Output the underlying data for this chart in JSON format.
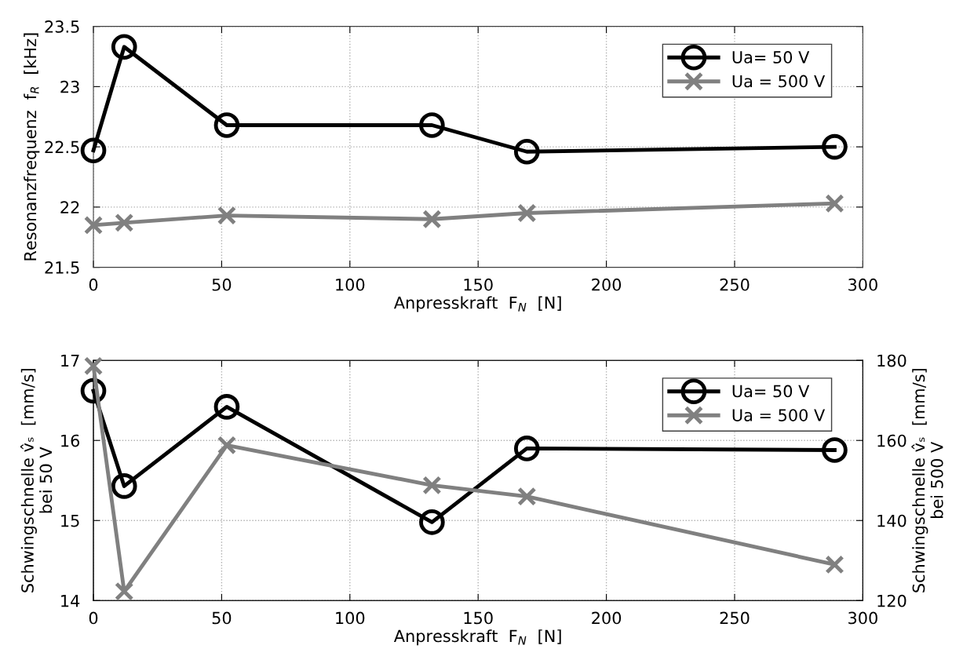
{
  "chart_data": [
    {
      "type": "line",
      "xlabel": "Anpresskraft  F$_{N}$  [N]",
      "ylabel": "Resonanzfrequenz  f$_{R}$  [kHz]",
      "x": [
        0,
        12,
        52,
        132,
        169,
        289
      ],
      "series": [
        {
          "name": "Ua= 50 V",
          "color": "#000000",
          "marker": "circle",
          "values": [
            22.47,
            23.33,
            22.68,
            22.68,
            22.46,
            22.5
          ]
        },
        {
          "name": "Ua = 500 V",
          "color": "#808080",
          "marker": "cross",
          "values": [
            21.85,
            21.87,
            21.93,
            21.9,
            21.95,
            22.03
          ]
        }
      ],
      "xlim": [
        0,
        300
      ],
      "xticks": [
        0,
        50,
        100,
        150,
        200,
        250,
        300
      ],
      "ylim": [
        21.5,
        23.5
      ],
      "yticks": [
        21.5,
        22,
        22.5,
        23,
        23.5
      ],
      "grid": true,
      "legend": "top right"
    },
    {
      "type": "line",
      "xlabel": "Anpresskraft  F$_{N}$  [N]",
      "ylabel": "Schwingschnelle v̂ₛ  [mm/s]\nbei 50 V",
      "y2label": "Schwingschnelle v̂ₛ  [mm/s]\nbei 500 V",
      "x": [
        0,
        12,
        52,
        132,
        169,
        289
      ],
      "series": [
        {
          "name": "Ua= 50 V",
          "color": "#000000",
          "marker": "circle",
          "values": [
            16.62,
            15.43,
            16.42,
            14.98,
            15.9,
            15.88
          ]
        },
        {
          "name": "Ua = 500 V",
          "color": "#808080",
          "marker": "cross",
          "axis": "y2",
          "values": [
            178.6,
            122.3,
            158.8,
            148.8,
            146,
            129
          ]
        }
      ],
      "xlim": [
        0,
        300
      ],
      "xticks": [
        0,
        50,
        100,
        150,
        200,
        250,
        300
      ],
      "ylim": [
        14,
        17
      ],
      "yticks": [
        14,
        15,
        16,
        17
      ],
      "y2lim": [
        120,
        180
      ],
      "y2ticks": [
        120,
        140,
        160,
        180
      ],
      "grid": true,
      "legend": "top right"
    }
  ]
}
